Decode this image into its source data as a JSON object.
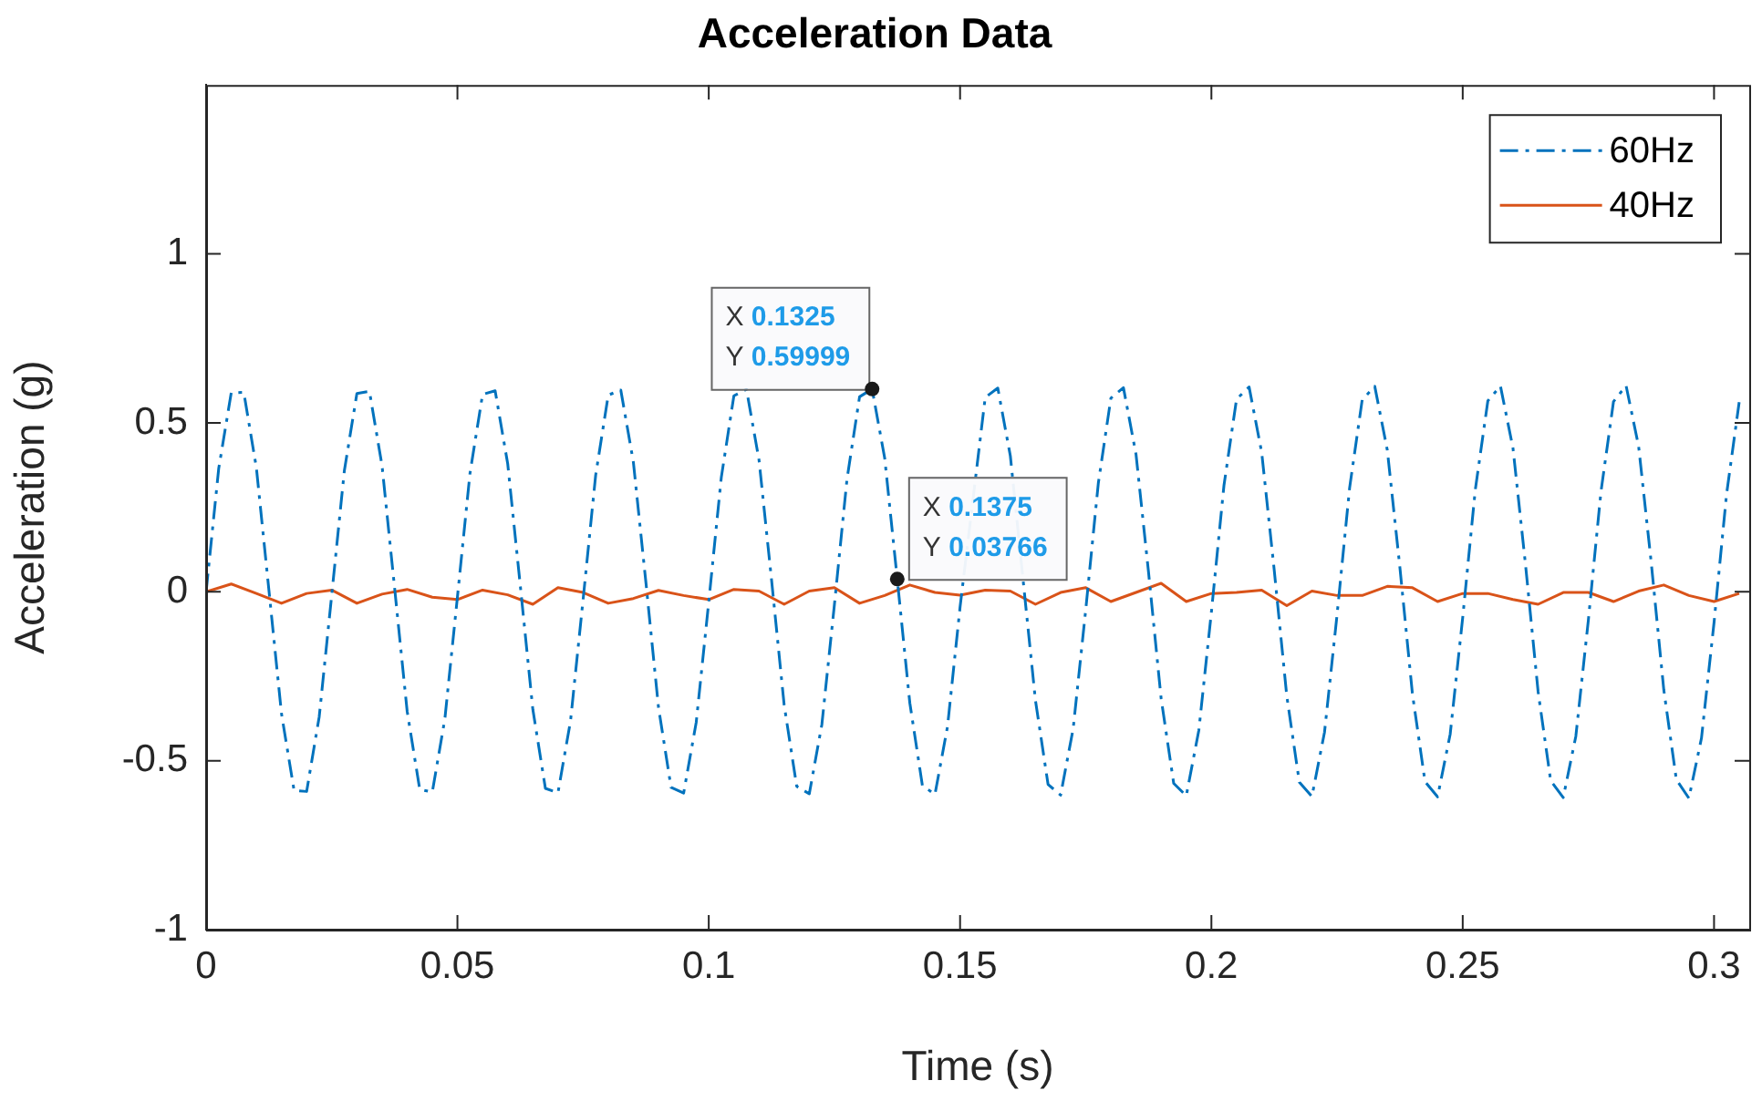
{
  "chart_data": {
    "type": "line",
    "title": "Acceleration Data",
    "xlabel": "Time (s)",
    "ylabel": "Acceleration (g)",
    "xlim": [
      0,
      0.307
    ],
    "xticks": [
      0,
      0.05,
      0.1,
      0.15,
      0.2,
      0.25,
      0.3
    ],
    "ylim": [
      -1,
      1.5
    ],
    "yticks": [
      -1,
      -0.5,
      0,
      0.5,
      1
    ],
    "grid": false,
    "legend": "top right",
    "marker": "none",
    "series": [
      {
        "name": "60Hz",
        "color": "#0072bd",
        "line_style": "dashdot",
        "x": [
          0,
          0.0025,
          0.005,
          0.0075,
          0.01,
          0.0125,
          0.015,
          0.0175,
          0.02,
          0.0225,
          0.025,
          0.0275,
          0.03,
          0.0325,
          0.035,
          0.0375,
          0.04,
          0.0425,
          0.045,
          0.0475,
          0.05,
          0.0525,
          0.055,
          0.0575,
          0.06,
          0.0625,
          0.065,
          0.0675,
          0.07,
          0.0725,
          0.075,
          0.0775,
          0.08,
          0.0825,
          0.085,
          0.0875,
          0.09,
          0.0925,
          0.095,
          0.0975,
          0.1,
          0.1025,
          0.105,
          0.1075,
          0.11,
          0.1125,
          0.115,
          0.1175,
          0.12,
          0.1225,
          0.125,
          0.1275,
          0.13,
          0.1325,
          0.135,
          0.1375,
          0.14,
          0.1425,
          0.145,
          0.1475,
          0.15,
          0.1525,
          0.155,
          0.1575,
          0.16,
          0.1625,
          0.165,
          0.1675,
          0.17,
          0.1725,
          0.175,
          0.1775,
          0.18,
          0.1825,
          0.185,
          0.1875,
          0.19,
          0.1925,
          0.195,
          0.1975,
          0.2,
          0.2025,
          0.205,
          0.2075,
          0.21,
          0.2125,
          0.215,
          0.2175,
          0.22,
          0.2225,
          0.225,
          0.2275,
          0.23,
          0.2325,
          0.235,
          0.2375,
          0.24,
          0.2425,
          0.245,
          0.2475,
          0.25,
          0.2525,
          0.255,
          0.2575,
          0.26,
          0.2625,
          0.265,
          0.2675,
          0.27,
          0.2725,
          0.275,
          0.2775,
          0.28,
          0.2825,
          0.285,
          0.2875,
          0.29,
          0.2925,
          0.295,
          0.2975,
          0.3,
          0.3025,
          0.305
        ],
        "values": [
          0,
          0.364,
          0.589,
          0.59,
          0.367,
          0.004,
          -0.361,
          -0.588,
          -0.591,
          -0.37,
          -0.008,
          0.358,
          0.587,
          0.593,
          0.373,
          0.011,
          -0.354,
          -0.585,
          -0.593,
          -0.376,
          -0.015,
          0.351,
          0.584,
          0.595,
          0.379,
          0.019,
          -0.348,
          -0.582,
          -0.595,
          -0.382,
          -0.023,
          0.345,
          0.582,
          0.597,
          0.384,
          0.027,
          -0.342,
          -0.579,
          -0.596,
          -0.387,
          -0.03,
          0.339,
          0.58,
          0.599,
          0.39,
          0.034,
          -0.335,
          -0.576,
          -0.598,
          -0.393,
          -0.038,
          0.333,
          0.577,
          0.59999,
          0.396,
          0.03766,
          -0.329,
          -0.573,
          -0.6,
          -0.399,
          -0.045,
          null,
          0.575,
          0.603,
          0.402,
          null,
          -0.322,
          -0.57,
          -0.602,
          -0.405,
          -0.053,
          0.321,
          0.573,
          0.604,
          0.407,
          0.057,
          -0.316,
          -0.567,
          -0.604,
          -0.41,
          -0.06,
          0.315,
          0.57,
          0.606,
          0.413,
          0.064,
          -0.309,
          -0.564,
          -0.606,
          -0.416,
          -0.068,
          0.308,
          0.568,
          0.608,
          0.419,
          0.072,
          -0.303,
          -0.562,
          -0.607,
          -0.422,
          -0.076,
          0.302,
          0.565,
          0.609,
          0.425,
          0.079,
          -0.296,
          -0.559,
          -0.609,
          -0.428,
          -0.083,
          0.296,
          0.563,
          0.61,
          0.43,
          0.087,
          -0.29,
          -0.556,
          -0.611,
          -0.433,
          -0.091,
          0.29,
          0.561
        ]
      },
      {
        "name": "40Hz",
        "color": "#d95319",
        "line_style": "solid",
        "x": [
          0,
          0.005,
          0.01,
          0.015,
          0.02,
          0.025,
          0.03,
          0.035,
          0.04,
          0.045,
          0.05,
          0.055,
          0.06,
          0.065,
          0.07,
          0.075,
          0.08,
          0.085,
          0.09,
          0.095,
          0.1,
          0.105,
          0.11,
          0.115,
          0.12,
          0.125,
          0.13,
          0.135,
          0.14,
          0.145,
          0.15,
          0.155,
          0.16,
          0.165,
          0.17,
          0.175,
          0.18,
          0.185,
          0.19,
          0.195,
          0.2,
          0.205,
          0.21,
          0.215,
          0.22,
          0.225,
          0.23,
          0.235,
          0.24,
          0.245,
          0.25,
          0.255,
          0.26,
          0.265,
          0.27,
          0.275,
          0.28,
          0.285,
          0.29,
          0.295,
          0.3,
          0.305
        ],
        "values": [
          0,
          0.023,
          -0.005,
          -0.034,
          -0.005,
          0.005,
          -0.034,
          -0.007,
          0.007,
          -0.016,
          -0.023,
          0.005,
          -0.009,
          -0.037,
          0.012,
          -0.002,
          -0.034,
          -0.02,
          0.004,
          -0.011,
          -0.023,
          0.007,
          0.002,
          -0.037,
          0.002,
          0.012,
          -0.034,
          -0.011,
          0.02,
          -0.002,
          -0.01,
          0.005,
          0.002,
          -0.037,
          -0.002,
          0.012,
          -0.029,
          -0.002,
          0.025,
          -0.029,
          -0.005,
          -0.002,
          0.005,
          -0.041,
          0.002,
          -0.011,
          -0.011,
          0.016,
          0.012,
          -0.029,
          -0.005,
          -0.005,
          -0.023,
          -0.037,
          -0.002,
          -0.002,
          -0.029,
          0.002,
          0.02,
          -0.011,
          -0.029,
          -0.005
        ]
      }
    ],
    "annotations": [
      {
        "text": "X 0.1325\nY 0.59999",
        "x": 0.1325,
        "y": 0.59999
      },
      {
        "text": "X 0.1375\nY 0.03766",
        "x": 0.1375,
        "y": 0.03766
      }
    ]
  }
}
